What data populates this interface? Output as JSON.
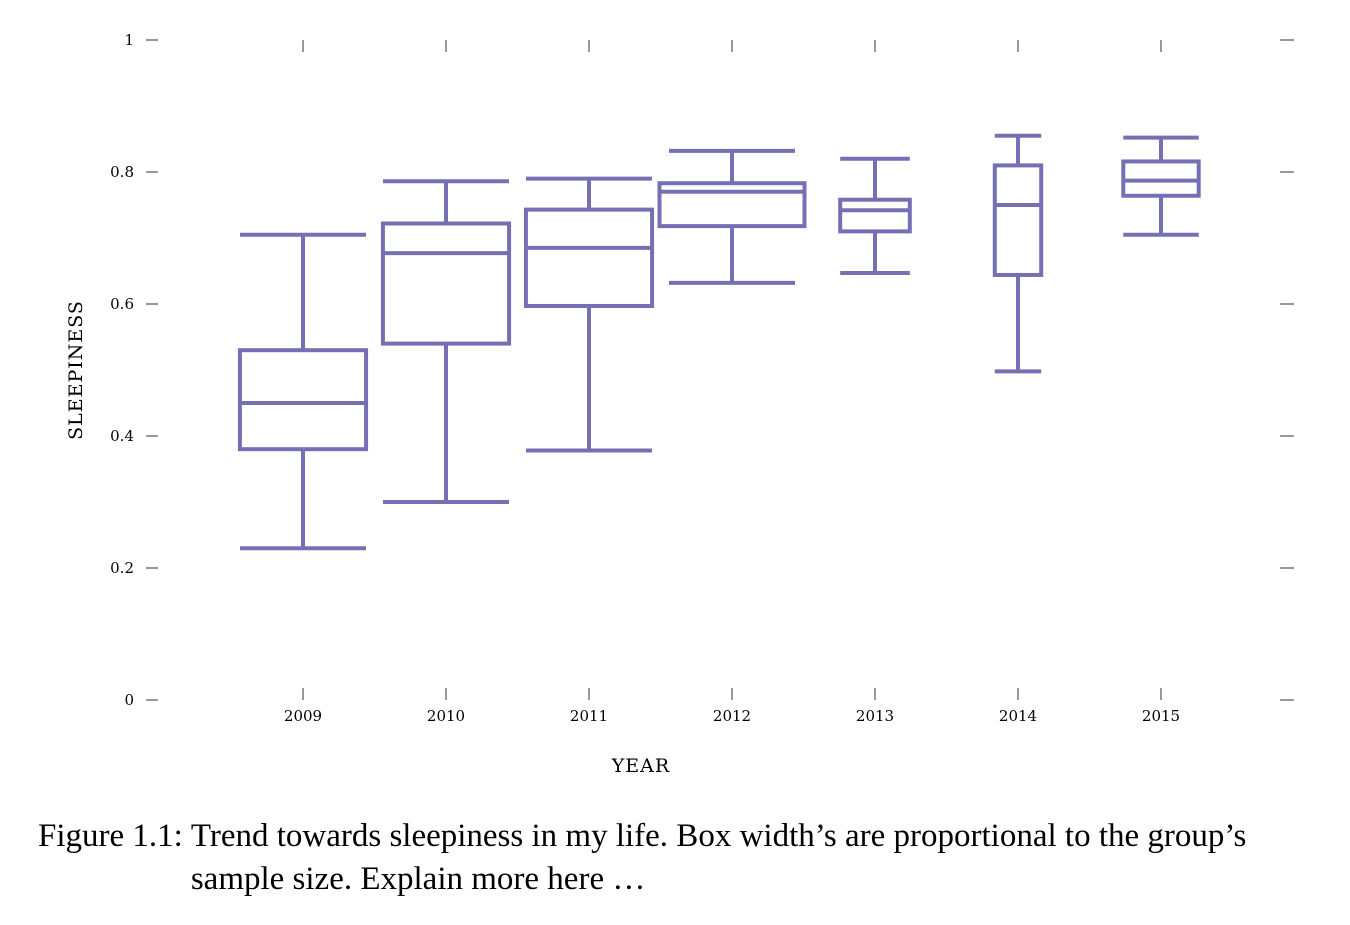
{
  "chart_data": {
    "type": "boxplot",
    "xlabel": "YEAR",
    "ylabel": "SLEEPINESS",
    "ylim": [
      0,
      1
    ],
    "yticks": [
      0,
      0.2,
      0.4,
      0.6,
      0.8,
      1
    ],
    "ytick_labels": [
      "0",
      "0.2",
      "0.4",
      "0.6",
      "0.8",
      "1"
    ],
    "grid": false,
    "color": "#7570b3",
    "categories": [
      "2009",
      "2010",
      "2011",
      "2012",
      "2013",
      "2014",
      "2015"
    ],
    "boxes": [
      {
        "category": "2009",
        "whisker_low": 0.23,
        "q1": 0.38,
        "median": 0.45,
        "q3": 0.53,
        "whisker_high": 0.705,
        "relative_width": 0.87
      },
      {
        "category": "2010",
        "whisker_low": 0.3,
        "q1": 0.54,
        "median": 0.677,
        "q3": 0.722,
        "whisker_high": 0.786,
        "relative_width": 0.87
      },
      {
        "category": "2011",
        "whisker_low": 0.378,
        "q1": 0.597,
        "median": 0.685,
        "q3": 0.743,
        "whisker_high": 0.79,
        "relative_width": 0.87
      },
      {
        "category": "2012",
        "whisker_low": 0.632,
        "q1": 0.718,
        "median": 0.77,
        "q3": 0.783,
        "whisker_high": 0.832,
        "relative_width": 1.0
      },
      {
        "category": "2013",
        "whisker_low": 0.647,
        "q1": 0.71,
        "median": 0.742,
        "q3": 0.758,
        "whisker_high": 0.82,
        "relative_width": 0.48
      },
      {
        "category": "2014",
        "whisker_low": 0.498,
        "q1": 0.644,
        "median": 0.75,
        "q3": 0.81,
        "whisker_high": 0.855,
        "relative_width": 0.32
      },
      {
        "category": "2015",
        "whisker_low": 0.705,
        "q1": 0.764,
        "median": 0.787,
        "q3": 0.816,
        "whisker_high": 0.852,
        "relative_width": 0.52
      }
    ]
  },
  "caption": {
    "label": "Figure 1.1:",
    "text": "Trend towards sleepiness in my life. Box width’s are proportional to the group’s sample size. Explain more here …"
  }
}
